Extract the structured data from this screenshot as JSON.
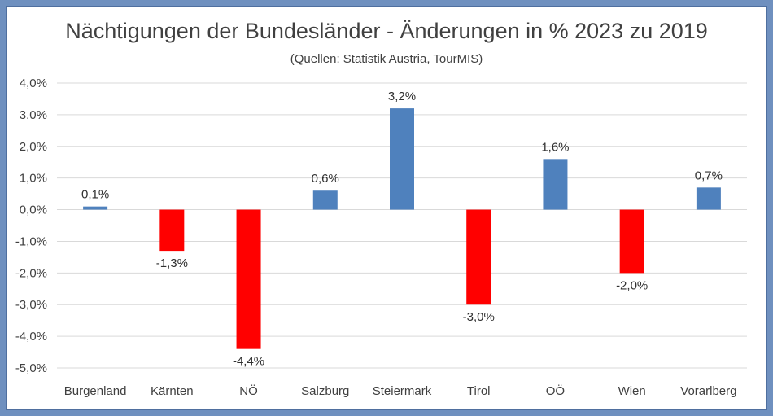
{
  "chart_data": {
    "type": "bar",
    "title": "Nächtigungen der Bundesländer - Änderungen in % 2023 zu 2019",
    "subtitle": "(Quellen: Statistik Austria, TourMIS)",
    "xlabel": "",
    "ylabel": "",
    "categories": [
      "Burgenland",
      "Kärnten",
      "NÖ",
      "Salzburg",
      "Steiermark",
      "Tirol",
      "OÖ",
      "Wien",
      "Vorarlberg"
    ],
    "values": [
      0.1,
      -1.3,
      -4.4,
      0.6,
      3.2,
      -3.0,
      1.6,
      -2.0,
      0.7
    ],
    "value_labels": [
      "0,1%",
      "-1,3%",
      "-4,4%",
      "0,6%",
      "3,2%",
      "-3,0%",
      "1,6%",
      "-2,0%",
      "0,7%"
    ],
    "ylim": [
      -5,
      4
    ],
    "yticks": [
      4,
      3,
      2,
      1,
      0,
      -1,
      -2,
      -3,
      -4,
      -5
    ],
    "ytick_labels": [
      "4,0%",
      "3,0%",
      "2,0%",
      "1,0%",
      "0,0%",
      "-1,0%",
      "-2,0%",
      "-3,0%",
      "-4,0%",
      "-5,0%"
    ],
    "grid": true,
    "legend": "none",
    "colors": {
      "positive": "#4f81bd",
      "negative": "#ff0000",
      "border": "#6f90bf"
    }
  }
}
